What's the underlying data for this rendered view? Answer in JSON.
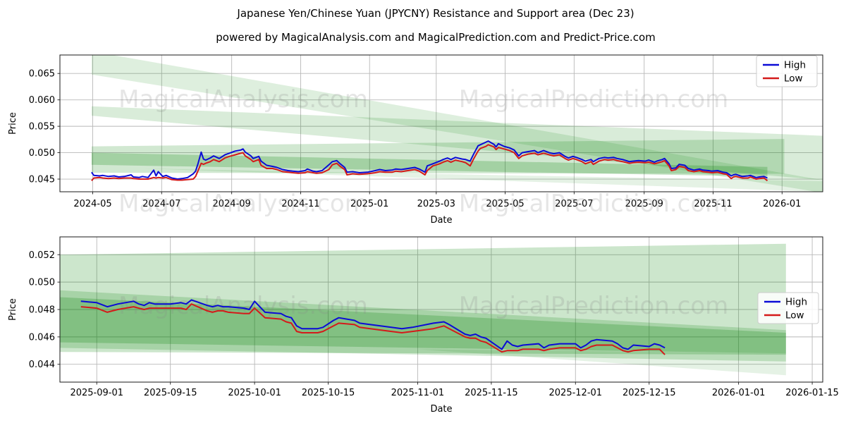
{
  "title": "Japanese Yen/Chinese Yuan (JPYCNY) Resistance and Support area (Dec 23)",
  "subtitle": "powered by MagicalAnalysis.com and MagicalPrediction.com and Predict-Price.com",
  "colors": {
    "high": "#0b0bd6",
    "low": "#d41a1a",
    "band": "#008000",
    "grid": "#b8b8b8",
    "spine": "#1a1a1a",
    "tick_text": "#000000",
    "watermark": "#8a8a8a",
    "legend_bg": "#ffffff",
    "legend_border": "#cccccc"
  },
  "watermarks": {
    "left_text": "MagicalAnalysis.com",
    "right_text": "MagicalPrediction.com"
  },
  "legend": {
    "items": [
      {
        "label": "High",
        "series": "high"
      },
      {
        "label": "Low",
        "series": "low"
      }
    ]
  },
  "chart_data": [
    {
      "type": "line",
      "name": "jpycny-daily-history",
      "xlabel": "Date",
      "ylabel": "Price",
      "xlim": [
        "2024-04-02",
        "2026-02-06"
      ],
      "ylim": [
        0.0426,
        0.0685
      ],
      "grid": true,
      "legend_position": "upper right",
      "xticks": [
        {
          "d": "2024-05-01",
          "label": "2024-05"
        },
        {
          "d": "2024-07-01",
          "label": "2024-07"
        },
        {
          "d": "2024-09-01",
          "label": "2024-09"
        },
        {
          "d": "2024-11-01",
          "label": "2024-11"
        },
        {
          "d": "2025-01-01",
          "label": "2025-01"
        },
        {
          "d": "2025-03-01",
          "label": "2025-03"
        },
        {
          "d": "2025-05-01",
          "label": "2025-05"
        },
        {
          "d": "2025-07-01",
          "label": "2025-07"
        },
        {
          "d": "2025-09-01",
          "label": "2025-09"
        },
        {
          "d": "2025-11-01",
          "label": "2025-11"
        },
        {
          "d": "2026-01-01",
          "label": "2026-01"
        }
      ],
      "yticks": [
        {
          "v": 0.045,
          "label": "0.045"
        },
        {
          "v": 0.05,
          "label": "0.050"
        },
        {
          "v": 0.055,
          "label": "0.055"
        },
        {
          "v": 0.06,
          "label": "0.060"
        },
        {
          "v": 0.065,
          "label": "0.065"
        }
      ],
      "dates": [
        "2024-04-30",
        "2024-05-02",
        "2024-05-07",
        "2024-05-10",
        "2024-05-15",
        "2024-05-20",
        "2024-05-24",
        "2024-05-29",
        "2024-06-04",
        "2024-06-06",
        "2024-06-11",
        "2024-06-14",
        "2024-06-19",
        "2024-06-24",
        "2024-06-26",
        "2024-06-28",
        "2024-07-02",
        "2024-07-05",
        "2024-07-10",
        "2024-07-15",
        "2024-07-19",
        "2024-07-24",
        "2024-07-29",
        "2024-07-31",
        "2024-08-02",
        "2024-08-05",
        "2024-08-07",
        "2024-08-09",
        "2024-08-13",
        "2024-08-16",
        "2024-08-21",
        "2024-08-26",
        "2024-08-30",
        "2024-09-04",
        "2024-09-09",
        "2024-09-11",
        "2024-09-13",
        "2024-09-18",
        "2024-09-20",
        "2024-09-25",
        "2024-09-27",
        "2024-10-02",
        "2024-10-07",
        "2024-10-11",
        "2024-10-16",
        "2024-10-21",
        "2024-10-25",
        "2024-10-30",
        "2024-11-05",
        "2024-11-07",
        "2024-11-12",
        "2024-11-15",
        "2024-11-20",
        "2024-11-26",
        "2024-11-29",
        "2024-12-03",
        "2024-12-06",
        "2024-12-10",
        "2024-12-12",
        "2024-12-17",
        "2024-12-23",
        "2024-12-30",
        "2025-01-06",
        "2025-01-10",
        "2025-01-15",
        "2025-01-21",
        "2025-01-24",
        "2025-01-29",
        "2025-02-04",
        "2025-02-10",
        "2025-02-14",
        "2025-02-19",
        "2025-02-21",
        "2025-02-26",
        "2025-03-04",
        "2025-03-07",
        "2025-03-11",
        "2025-03-14",
        "2025-03-18",
        "2025-03-24",
        "2025-03-27",
        "2025-03-31",
        "2025-04-03",
        "2025-04-07",
        "2025-04-09",
        "2025-04-14",
        "2025-04-16",
        "2025-04-21",
        "2025-04-23",
        "2025-04-25",
        "2025-04-30",
        "2025-05-05",
        "2025-05-09",
        "2025-05-13",
        "2025-05-16",
        "2025-05-21",
        "2025-05-27",
        "2025-05-30",
        "2025-06-04",
        "2025-06-09",
        "2025-06-13",
        "2025-06-18",
        "2025-06-23",
        "2025-06-26",
        "2025-06-30",
        "2025-07-03",
        "2025-07-08",
        "2025-07-11",
        "2025-07-16",
        "2025-07-18",
        "2025-07-23",
        "2025-07-28",
        "2025-07-31",
        "2025-08-05",
        "2025-08-08",
        "2025-08-13",
        "2025-08-19",
        "2025-08-22",
        "2025-08-27",
        "2025-09-02",
        "2025-09-05",
        "2025-09-10",
        "2025-09-12",
        "2025-09-17",
        "2025-09-19",
        "2025-09-23",
        "2025-09-25",
        "2025-09-29",
        "2025-10-02",
        "2025-10-07",
        "2025-10-10",
        "2025-10-15",
        "2025-10-20",
        "2025-10-23",
        "2025-10-28",
        "2025-10-31",
        "2025-11-05",
        "2025-11-10",
        "2025-11-13",
        "2025-11-17",
        "2025-11-19",
        "2025-11-21",
        "2025-11-25",
        "2025-11-27",
        "2025-12-02",
        "2025-12-04",
        "2025-12-09",
        "2025-12-12",
        "2025-12-16",
        "2025-12-19"
      ],
      "high": [
        0.0463,
        0.0457,
        0.0456,
        0.0457,
        0.0455,
        0.0456,
        0.0454,
        0.0455,
        0.0458,
        0.0454,
        0.0453,
        0.0455,
        0.0453,
        0.0467,
        0.0456,
        0.0464,
        0.0455,
        0.0457,
        0.0452,
        0.045,
        0.0451,
        0.0453,
        0.046,
        0.0465,
        0.0478,
        0.0501,
        0.0488,
        0.0486,
        0.049,
        0.0494,
        0.0489,
        0.0496,
        0.0499,
        0.0503,
        0.0505,
        0.0507,
        0.0501,
        0.0494,
        0.0489,
        0.0493,
        0.0484,
        0.0476,
        0.0474,
        0.0472,
        0.0468,
        0.0466,
        0.0465,
        0.0464,
        0.0466,
        0.0469,
        0.0465,
        0.0464,
        0.0466,
        0.0477,
        0.0483,
        0.0485,
        0.0479,
        0.0472,
        0.0463,
        0.0464,
        0.0462,
        0.0463,
        0.0466,
        0.0468,
        0.0466,
        0.0467,
        0.0469,
        0.0468,
        0.047,
        0.0472,
        0.0469,
        0.0463,
        0.0475,
        0.0479,
        0.0484,
        0.0487,
        0.049,
        0.0487,
        0.0491,
        0.0488,
        0.0487,
        0.0484,
        0.0497,
        0.0513,
        0.0515,
        0.052,
        0.0522,
        0.0516,
        0.0511,
        0.0517,
        0.0512,
        0.0509,
        0.0505,
        0.0494,
        0.05,
        0.0502,
        0.0504,
        0.05,
        0.0504,
        0.05,
        0.0498,
        0.05,
        0.0493,
        0.049,
        0.0493,
        0.0491,
        0.0487,
        0.0484,
        0.0487,
        0.0483,
        0.0489,
        0.0491,
        0.049,
        0.0491,
        0.0489,
        0.0487,
        0.0483,
        0.0484,
        0.0485,
        0.0484,
        0.0486,
        0.0482,
        0.0484,
        0.0487,
        0.0489,
        0.0479,
        0.047,
        0.0471,
        0.0478,
        0.0476,
        0.047,
        0.0467,
        0.0469,
        0.0467,
        0.0466,
        0.0465,
        0.0466,
        0.0463,
        0.0462,
        0.0456,
        0.0458,
        0.0459,
        0.0456,
        0.0455,
        0.0456,
        0.0457,
        0.0453,
        0.0454,
        0.0455,
        0.0452
      ],
      "low": [
        0.0447,
        0.0452,
        0.0453,
        0.0452,
        0.0451,
        0.0452,
        0.0451,
        0.0452,
        0.0452,
        0.0451,
        0.045,
        0.045,
        0.045,
        0.0453,
        0.0452,
        0.0453,
        0.0452,
        0.0453,
        0.0449,
        0.0448,
        0.0448,
        0.0449,
        0.045,
        0.0455,
        0.0465,
        0.048,
        0.0478,
        0.048,
        0.0483,
        0.0487,
        0.0483,
        0.049,
        0.0493,
        0.0496,
        0.0499,
        0.05,
        0.0494,
        0.0487,
        0.0483,
        0.0487,
        0.0476,
        0.047,
        0.047,
        0.0468,
        0.0464,
        0.0463,
        0.0462,
        0.0461,
        0.0462,
        0.0464,
        0.0462,
        0.0461,
        0.0462,
        0.0468,
        0.0477,
        0.048,
        0.0474,
        0.0468,
        0.0458,
        0.046,
        0.0459,
        0.046,
        0.0462,
        0.0464,
        0.0463,
        0.0463,
        0.0465,
        0.0464,
        0.0466,
        0.0468,
        0.0465,
        0.0458,
        0.0466,
        0.0475,
        0.0479,
        0.0482,
        0.0485,
        0.0482,
        0.0486,
        0.0483,
        0.0481,
        0.0475,
        0.0488,
        0.0503,
        0.0508,
        0.0512,
        0.0515,
        0.0511,
        0.0506,
        0.051,
        0.0507,
        0.0504,
        0.05,
        0.0489,
        0.0494,
        0.0497,
        0.0499,
        0.0496,
        0.0499,
        0.0496,
        0.0494,
        0.0496,
        0.0489,
        0.0486,
        0.0489,
        0.0487,
        0.0483,
        0.0479,
        0.0483,
        0.0478,
        0.0484,
        0.0487,
        0.0486,
        0.0487,
        0.0485,
        0.0483,
        0.048,
        0.0481,
        0.0482,
        0.0481,
        0.0482,
        0.0479,
        0.048,
        0.0483,
        0.0485,
        0.0475,
        0.0466,
        0.0468,
        0.0474,
        0.0472,
        0.0466,
        0.0464,
        0.0466,
        0.0464,
        0.0463,
        0.0462,
        0.0463,
        0.046,
        0.0459,
        0.0451,
        0.0454,
        0.0455,
        0.0453,
        0.0452,
        0.0452,
        0.0454,
        0.045,
        0.0451,
        0.0452,
        0.0447
      ],
      "bands": [
        {
          "alpha": 0.13,
          "points": [
            [
              "2024-04-30",
              0.0692
            ],
            [
              "2026-02-06",
              0.0448
            ],
            [
              "2026-02-06",
              0.0424
            ],
            [
              "2024-04-30",
              0.0648
            ]
          ]
        },
        {
          "alpha": 0.15,
          "points": [
            [
              "2024-04-30",
              0.0588
            ],
            [
              "2026-02-06",
              0.0532
            ],
            [
              "2026-02-06",
              0.0448
            ],
            [
              "2024-04-30",
              0.057
            ]
          ]
        },
        {
          "alpha": 0.18,
          "points": [
            [
              "2024-04-30",
              0.0512
            ],
            [
              "2026-01-03",
              0.0526
            ],
            [
              "2026-01-03",
              0.046
            ],
            [
              "2024-04-30",
              0.0462
            ]
          ]
        },
        {
          "alpha": 0.22,
          "points": [
            [
              "2024-04-30",
              0.05
            ],
            [
              "2025-12-19",
              0.0473
            ],
            [
              "2025-12-19",
              0.0455
            ],
            [
              "2024-04-30",
              0.0477
            ]
          ]
        },
        {
          "alpha": 0.1,
          "points": [
            [
              "2024-06-15",
              0.047
            ],
            [
              "2026-02-06",
              0.0446
            ],
            [
              "2026-02-06",
              0.0426
            ]
          ]
        }
      ]
    },
    {
      "type": "line",
      "name": "jpycny-recent-window",
      "xlabel": "Date",
      "ylabel": "Price",
      "xlim": [
        "2025-08-25",
        "2026-01-17"
      ],
      "ylim": [
        0.0427,
        0.0533
      ],
      "grid": true,
      "legend_position": "right",
      "xticks": [
        {
          "d": "2025-09-01",
          "label": "2025-09-01"
        },
        {
          "d": "2025-09-15",
          "label": "2025-09-15"
        },
        {
          "d": "2025-10-01",
          "label": "2025-10-01"
        },
        {
          "d": "2025-10-15",
          "label": "2025-10-15"
        },
        {
          "d": "2025-11-01",
          "label": "2025-11-01"
        },
        {
          "d": "2025-11-15",
          "label": "2025-11-15"
        },
        {
          "d": "2025-12-01",
          "label": "2025-12-01"
        },
        {
          "d": "2025-12-15",
          "label": "2025-12-15"
        },
        {
          "d": "2026-01-01",
          "label": "2026-01-01"
        },
        {
          "d": "2026-01-15",
          "label": "2026-01-15"
        }
      ],
      "yticks": [
        {
          "v": 0.044,
          "label": "0.044"
        },
        {
          "v": 0.046,
          "label": "0.046"
        },
        {
          "v": 0.048,
          "label": "0.048"
        },
        {
          "v": 0.05,
          "label": "0.050"
        },
        {
          "v": 0.052,
          "label": "0.052"
        }
      ],
      "dates": [
        "2025-08-29",
        "2025-09-01",
        "2025-09-03",
        "2025-09-04",
        "2025-09-05",
        "2025-09-08",
        "2025-09-09",
        "2025-09-10",
        "2025-09-11",
        "2025-09-12",
        "2025-09-15",
        "2025-09-17",
        "2025-09-18",
        "2025-09-19",
        "2025-09-22",
        "2025-09-23",
        "2025-09-24",
        "2025-09-25",
        "2025-09-26",
        "2025-09-29",
        "2025-09-30",
        "2025-10-01",
        "2025-10-03",
        "2025-10-06",
        "2025-10-07",
        "2025-10-08",
        "2025-10-09",
        "2025-10-10",
        "2025-10-13",
        "2025-10-14",
        "2025-10-16",
        "2025-10-17",
        "2025-10-20",
        "2025-10-21",
        "2025-10-23",
        "2025-10-27",
        "2025-10-29",
        "2025-10-31",
        "2025-11-04",
        "2025-11-06",
        "2025-11-07",
        "2025-11-10",
        "2025-11-11",
        "2025-11-12",
        "2025-11-13",
        "2025-11-14",
        "2025-11-17",
        "2025-11-18",
        "2025-11-19",
        "2025-11-20",
        "2025-11-21",
        "2025-11-24",
        "2025-11-25",
        "2025-11-26",
        "2025-11-28",
        "2025-12-01",
        "2025-12-02",
        "2025-12-03",
        "2025-12-04",
        "2025-12-05",
        "2025-12-08",
        "2025-12-09",
        "2025-12-10",
        "2025-12-11",
        "2025-12-12",
        "2025-12-15",
        "2025-12-16",
        "2025-12-17",
        "2025-12-18"
      ],
      "high": [
        0.0486,
        0.0485,
        0.0482,
        0.0483,
        0.0484,
        0.0486,
        0.0484,
        0.0483,
        0.0485,
        0.0484,
        0.0484,
        0.0485,
        0.0484,
        0.0487,
        0.0483,
        0.0482,
        0.0483,
        0.0482,
        0.0482,
        0.0481,
        0.048,
        0.0486,
        0.0478,
        0.0477,
        0.0475,
        0.0474,
        0.0468,
        0.0466,
        0.0466,
        0.0467,
        0.0472,
        0.0474,
        0.0472,
        0.047,
        0.0469,
        0.0467,
        0.0466,
        0.0467,
        0.047,
        0.0471,
        0.0469,
        0.0462,
        0.0461,
        0.0462,
        0.046,
        0.0459,
        0.0451,
        0.0457,
        0.0454,
        0.0453,
        0.0454,
        0.0455,
        0.0452,
        0.0454,
        0.0455,
        0.0455,
        0.0452,
        0.0454,
        0.0457,
        0.0458,
        0.0457,
        0.0455,
        0.0452,
        0.0451,
        0.0454,
        0.0453,
        0.0455,
        0.0454,
        0.0452
      ],
      "low": [
        0.0482,
        0.0481,
        0.0478,
        0.0479,
        0.048,
        0.0482,
        0.0481,
        0.048,
        0.0481,
        0.0481,
        0.0481,
        0.0481,
        0.048,
        0.0484,
        0.0479,
        0.0478,
        0.0479,
        0.0479,
        0.0478,
        0.0477,
        0.0477,
        0.0481,
        0.0474,
        0.0473,
        0.0471,
        0.047,
        0.0464,
        0.0463,
        0.0463,
        0.0464,
        0.0468,
        0.047,
        0.0469,
        0.0467,
        0.0466,
        0.0464,
        0.0463,
        0.0464,
        0.0466,
        0.0468,
        0.0466,
        0.046,
        0.0459,
        0.0459,
        0.0457,
        0.0456,
        0.0449,
        0.045,
        0.045,
        0.045,
        0.0451,
        0.0451,
        0.045,
        0.0451,
        0.0452,
        0.0452,
        0.045,
        0.0451,
        0.0453,
        0.0454,
        0.0454,
        0.0452,
        0.045,
        0.0449,
        0.045,
        0.0451,
        0.0451,
        0.0451,
        0.0447
      ],
      "bands": [
        {
          "alpha": 0.2,
          "points": [
            [
              "2025-08-25",
              0.052
            ],
            [
              "2026-01-10",
              0.0528
            ],
            [
              "2026-01-10",
              0.0447
            ],
            [
              "2025-08-25",
              0.0449
            ]
          ]
        },
        {
          "alpha": 0.18,
          "points": [
            [
              "2025-08-25",
              0.0494
            ],
            [
              "2026-01-10",
              0.0465
            ],
            [
              "2026-01-10",
              0.0442
            ],
            [
              "2025-08-25",
              0.0452
            ]
          ]
        },
        {
          "alpha": 0.22,
          "points": [
            [
              "2025-08-25",
              0.0489
            ],
            [
              "2026-01-10",
              0.0463
            ],
            [
              "2026-01-10",
              0.0448
            ],
            [
              "2025-08-25",
              0.0456
            ]
          ]
        },
        {
          "alpha": 0.1,
          "points": [
            [
              "2025-11-01",
              0.0451
            ],
            [
              "2026-01-10",
              0.0448
            ],
            [
              "2026-01-10",
              0.0432
            ]
          ]
        }
      ]
    }
  ]
}
